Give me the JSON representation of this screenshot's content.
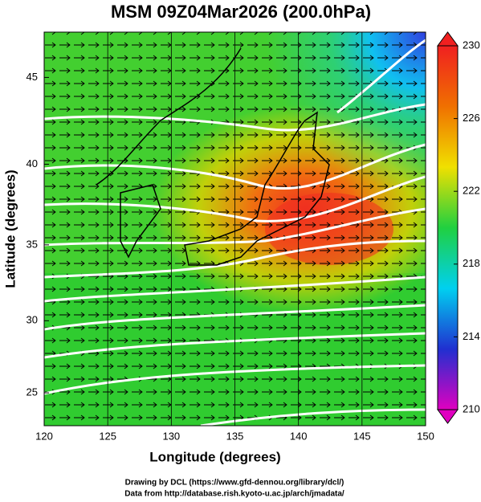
{
  "chart_data": {
    "type": "map",
    "title": "MSM 09Z04Mar2026 (200.0hPa)",
    "x_label": "Longitude (degrees)",
    "y_label": "Latitude  (degrees)",
    "projection": "mercator",
    "xlim": [
      120,
      150
    ],
    "xticks": [
      120,
      125,
      130,
      135,
      140,
      145,
      150
    ],
    "ylim": [
      22.65,
      47.45
    ],
    "yticks": [
      25,
      30,
      35,
      40,
      45
    ],
    "colorbar": {
      "clim": [
        210,
        230
      ],
      "ticks": [
        210,
        214,
        218,
        222,
        226,
        230
      ],
      "colors": [
        "#e000c0",
        "#2030d0",
        "#00d0f0",
        "#20d040",
        "#f0e000",
        "#f07000",
        "#f02020"
      ]
    },
    "credits": [
      "Drawing by DCL (https://www.gfd-dennou.org/library/dcl/)",
      "Data from http://database.rish.kyoto-u.ac.jp/arch/jmadata/"
    ]
  }
}
